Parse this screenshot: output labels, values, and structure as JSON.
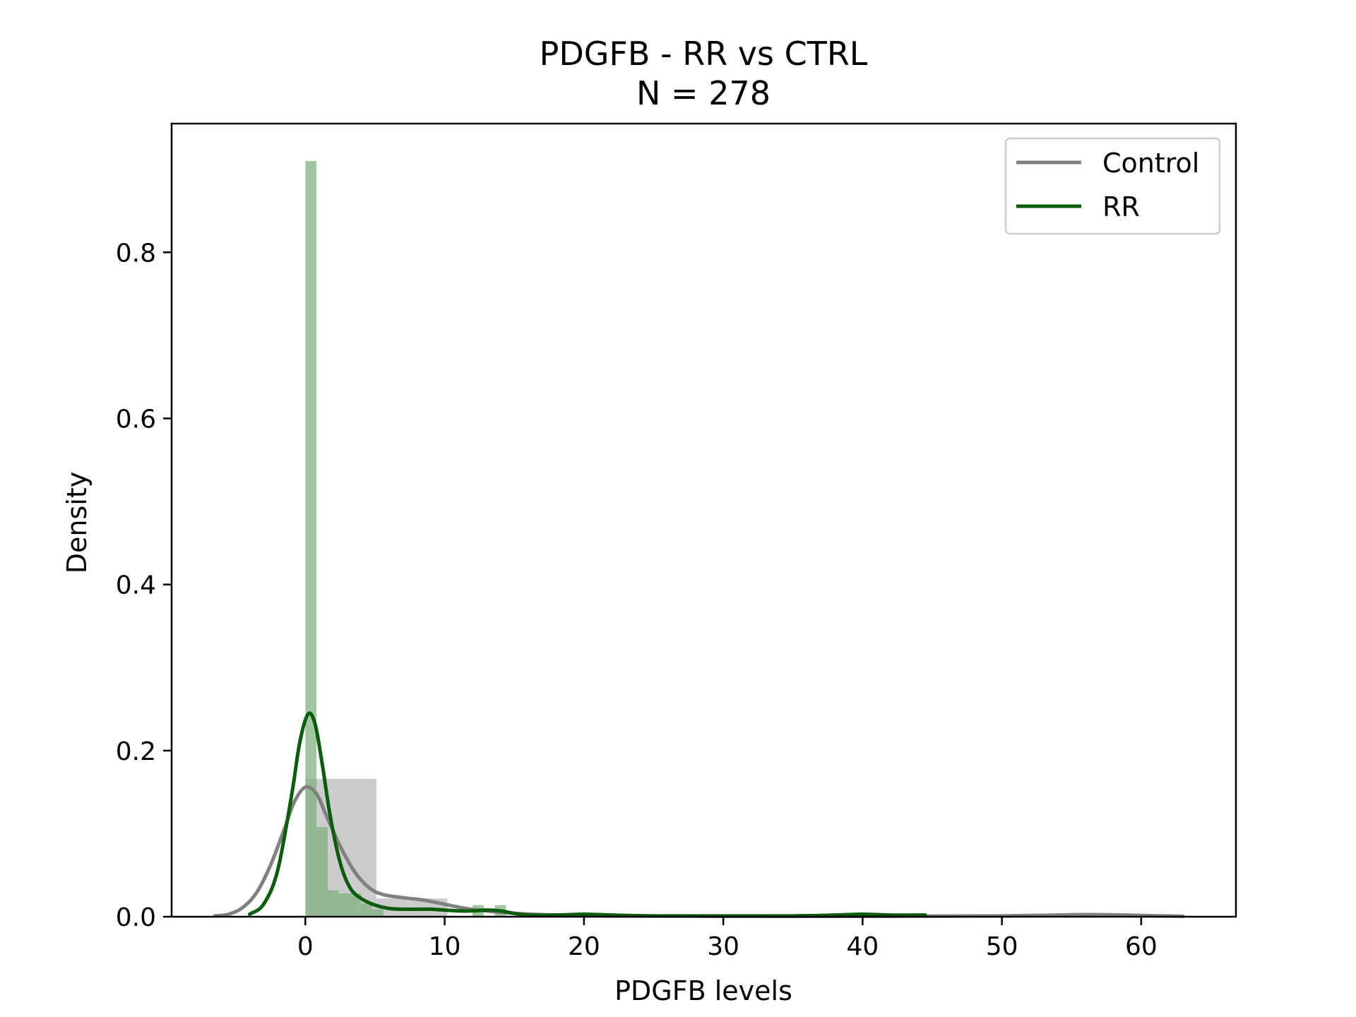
{
  "chart_data": {
    "type": "histogram_kde",
    "title": "PDGFB - RR vs CTRL",
    "subtitle": "N = 278",
    "xlabel": "PDGFB levels",
    "ylabel": "Density",
    "xlim": [
      -9.6,
      66.8
    ],
    "ylim": [
      0,
      0.955
    ],
    "xticks": [
      0,
      10,
      20,
      30,
      40,
      50,
      60
    ],
    "yticks": [
      0.0,
      0.2,
      0.4,
      0.6,
      0.8
    ],
    "ytick_labels": [
      "0.0",
      "0.2",
      "0.4",
      "0.6",
      "0.8"
    ],
    "grid": false,
    "legend_position": "top-right",
    "series": [
      {
        "name": "Control",
        "line_color": "#808080",
        "bar_color": "#bfbfbf",
        "histogram": [
          {
            "x0": 0.0,
            "x1": 5.1,
            "y": 0.166
          },
          {
            "x0": 5.1,
            "x1": 10.2,
            "y": 0.022
          },
          {
            "x0": 10.2,
            "x1": 63.2,
            "y": 0.001
          }
        ],
        "kde": [
          [
            -6.5,
            0.001
          ],
          [
            -5.5,
            0.003
          ],
          [
            -4.5,
            0.011
          ],
          [
            -3.5,
            0.029
          ],
          [
            -2.5,
            0.062
          ],
          [
            -1.5,
            0.106
          ],
          [
            -0.8,
            0.138
          ],
          [
            0,
            0.156
          ],
          [
            0.8,
            0.148
          ],
          [
            1.5,
            0.122
          ],
          [
            2.5,
            0.085
          ],
          [
            3.5,
            0.055
          ],
          [
            4.5,
            0.036
          ],
          [
            5.5,
            0.027
          ],
          [
            7,
            0.023
          ],
          [
            8.5,
            0.02
          ],
          [
            10,
            0.015
          ],
          [
            11.5,
            0.01
          ],
          [
            13,
            0.007
          ],
          [
            15,
            0.004
          ],
          [
            18,
            0.002
          ],
          [
            22,
            0.001
          ],
          [
            30,
            0.0005
          ],
          [
            40,
            0.0005
          ],
          [
            50,
            0.001
          ],
          [
            56,
            0.0025
          ],
          [
            60,
            0.0015
          ],
          [
            63,
            0.0005
          ]
        ]
      },
      {
        "name": "RR",
        "line_color": "#0b5d0b",
        "bar_color": "#7fb37f",
        "histogram": [
          {
            "x0": 0.0,
            "x1": 0.8,
            "y": 0.91
          },
          {
            "x0": 0.8,
            "x1": 1.6,
            "y": 0.108
          },
          {
            "x0": 1.6,
            "x1": 2.4,
            "y": 0.032
          },
          {
            "x0": 2.4,
            "x1": 3.2,
            "y": 0.028
          },
          {
            "x0": 3.2,
            "x1": 4.0,
            "y": 0.028
          },
          {
            "x0": 4.0,
            "x1": 4.8,
            "y": 0.016
          },
          {
            "x0": 4.8,
            "x1": 5.6,
            "y": 0.009
          },
          {
            "x0": 12.0,
            "x1": 12.8,
            "y": 0.014
          },
          {
            "x0": 13.6,
            "x1": 14.4,
            "y": 0.014
          }
        ],
        "kde": [
          [
            -4,
            0.003
          ],
          [
            -3,
            0.015
          ],
          [
            -2,
            0.055
          ],
          [
            -1,
            0.145
          ],
          [
            -0.4,
            0.21
          ],
          [
            0.2,
            0.244
          ],
          [
            0.7,
            0.232
          ],
          [
            1.2,
            0.185
          ],
          [
            1.8,
            0.12
          ],
          [
            2.5,
            0.065
          ],
          [
            3.2,
            0.035
          ],
          [
            4,
            0.022
          ],
          [
            5,
            0.014
          ],
          [
            6,
            0.01
          ],
          [
            7,
            0.009
          ],
          [
            8,
            0.009
          ],
          [
            9,
            0.009
          ],
          [
            10,
            0.008
          ],
          [
            11,
            0.007
          ],
          [
            12,
            0.007
          ],
          [
            13,
            0.008
          ],
          [
            14,
            0.007
          ],
          [
            15,
            0.004
          ],
          [
            16,
            0.002
          ],
          [
            18,
            0.002
          ],
          [
            20,
            0.003
          ],
          [
            22,
            0.002
          ],
          [
            25,
            0.001
          ],
          [
            30,
            0.001
          ],
          [
            35,
            0.001
          ],
          [
            38,
            0.002
          ],
          [
            40,
            0.003
          ],
          [
            42,
            0.002
          ],
          [
            44.5,
            0.002
          ]
        ]
      }
    ]
  }
}
